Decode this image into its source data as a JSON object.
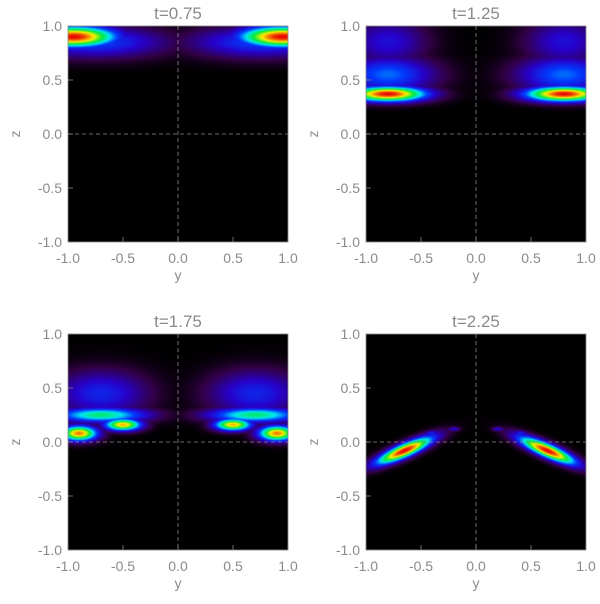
{
  "chart_data": [
    {
      "type": "heatmap",
      "title": "t=0.75",
      "xlabel": "y",
      "ylabel": "z",
      "xlim": [
        -1.0,
        1.0
      ],
      "ylim": [
        -1.0,
        1.0
      ],
      "xticks": [
        "-1.0",
        "-0.5",
        "0.0",
        "0.5",
        "1.0"
      ],
      "yticks": [
        "-1.0",
        "-0.5",
        "0.0",
        "0.5",
        "1.0"
      ],
      "grid": "dashed lines at y=0 and z=0",
      "blobs": [
        {
          "y": -0.95,
          "z": 0.9,
          "sy": 0.28,
          "sz": 0.07,
          "amp": 1.0,
          "rot": 0
        },
        {
          "y": -0.75,
          "z": 0.85,
          "sy": 0.45,
          "sz": 0.1,
          "amp": 0.35,
          "rot": 0
        },
        {
          "y": 0.95,
          "z": 0.9,
          "sy": 0.28,
          "sz": 0.07,
          "amp": 1.0,
          "rot": 0
        },
        {
          "y": 0.75,
          "z": 0.85,
          "sy": 0.45,
          "sz": 0.1,
          "amp": 0.35,
          "rot": 0
        }
      ]
    },
    {
      "type": "heatmap",
      "title": "t=1.25",
      "xlabel": "y",
      "ylabel": "z",
      "xlim": [
        -1.0,
        1.0
      ],
      "ylim": [
        -1.0,
        1.0
      ],
      "xticks": [
        "-1.0",
        "-0.5",
        "0.0",
        "0.5",
        "1.0"
      ],
      "yticks": [
        "-1.0",
        "-0.5",
        "0.0",
        "0.5",
        "1.0"
      ],
      "grid": "dashed lines at y=0 and z=0",
      "blobs": [
        {
          "y": -0.8,
          "z": 0.37,
          "sy": 0.25,
          "sz": 0.05,
          "amp": 1.0,
          "rot": 0
        },
        {
          "y": -0.8,
          "z": 0.55,
          "sy": 0.3,
          "sz": 0.12,
          "amp": 0.4,
          "rot": 0
        },
        {
          "y": -0.8,
          "z": 0.85,
          "sy": 0.25,
          "sz": 0.15,
          "amp": 0.25,
          "rot": 0
        },
        {
          "y": 0.8,
          "z": 0.37,
          "sy": 0.25,
          "sz": 0.05,
          "amp": 1.0,
          "rot": 0
        },
        {
          "y": 0.8,
          "z": 0.55,
          "sy": 0.3,
          "sz": 0.12,
          "amp": 0.4,
          "rot": 0
        },
        {
          "y": 0.8,
          "z": 0.85,
          "sy": 0.25,
          "sz": 0.15,
          "amp": 0.25,
          "rot": 0
        }
      ]
    },
    {
      "type": "heatmap",
      "title": "t=1.75",
      "xlabel": "y",
      "ylabel": "z",
      "xlim": [
        -1.0,
        1.0
      ],
      "ylim": [
        -1.0,
        1.0
      ],
      "xticks": [
        "-1.0",
        "-0.5",
        "0.0",
        "0.5",
        "1.0"
      ],
      "yticks": [
        "-1.0",
        "-0.5",
        "0.0",
        "0.5",
        "1.0"
      ],
      "grid": "dashed lines at y=0 and z=0",
      "blobs": [
        {
          "y": -0.9,
          "z": 0.08,
          "sy": 0.12,
          "sz": 0.05,
          "amp": 0.9,
          "rot": 0
        },
        {
          "y": -0.5,
          "z": 0.16,
          "sy": 0.12,
          "sz": 0.04,
          "amp": 0.85,
          "rot": 0
        },
        {
          "y": -0.7,
          "z": 0.25,
          "sy": 0.3,
          "sz": 0.05,
          "amp": 0.6,
          "rot": 0
        },
        {
          "y": -0.7,
          "z": 0.45,
          "sy": 0.3,
          "sz": 0.15,
          "amp": 0.3,
          "rot": 0
        },
        {
          "y": 0.9,
          "z": 0.08,
          "sy": 0.12,
          "sz": 0.05,
          "amp": 0.9,
          "rot": 0
        },
        {
          "y": 0.5,
          "z": 0.16,
          "sy": 0.12,
          "sz": 0.04,
          "amp": 0.85,
          "rot": 0
        },
        {
          "y": 0.7,
          "z": 0.25,
          "sy": 0.3,
          "sz": 0.05,
          "amp": 0.6,
          "rot": 0
        },
        {
          "y": 0.7,
          "z": 0.45,
          "sy": 0.3,
          "sz": 0.15,
          "amp": 0.3,
          "rot": 0
        }
      ]
    },
    {
      "type": "heatmap",
      "title": "t=2.25",
      "xlabel": "y",
      "ylabel": "z",
      "xlim": [
        -1.0,
        1.0
      ],
      "ylim": [
        -1.0,
        1.0
      ],
      "xticks": [
        "-1.0",
        "-0.5",
        "0.0",
        "0.5",
        "1.0"
      ],
      "yticks": [
        "-1.0",
        "-0.5",
        "0.0",
        "0.5",
        "1.0"
      ],
      "grid": "dashed lines at y=0 and z=0",
      "blobs": [
        {
          "y": -0.65,
          "z": -0.08,
          "sy": 0.2,
          "sz": 0.045,
          "amp": 1.0,
          "rot": 0.42
        },
        {
          "y": -0.4,
          "z": 0.08,
          "sy": 0.05,
          "sz": 0.02,
          "amp": 0.3,
          "rot": 0
        },
        {
          "y": -0.2,
          "z": 0.12,
          "sy": 0.04,
          "sz": 0.015,
          "amp": 0.25,
          "rot": 0
        },
        {
          "y": 0.65,
          "z": -0.08,
          "sy": 0.2,
          "sz": 0.045,
          "amp": 1.0,
          "rot": -0.42
        },
        {
          "y": 0.4,
          "z": 0.08,
          "sy": 0.05,
          "sz": 0.02,
          "amp": 0.3,
          "rot": 0
        },
        {
          "y": 0.2,
          "z": 0.12,
          "sy": 0.04,
          "sz": 0.015,
          "amp": 0.25,
          "rot": 0
        }
      ]
    }
  ]
}
